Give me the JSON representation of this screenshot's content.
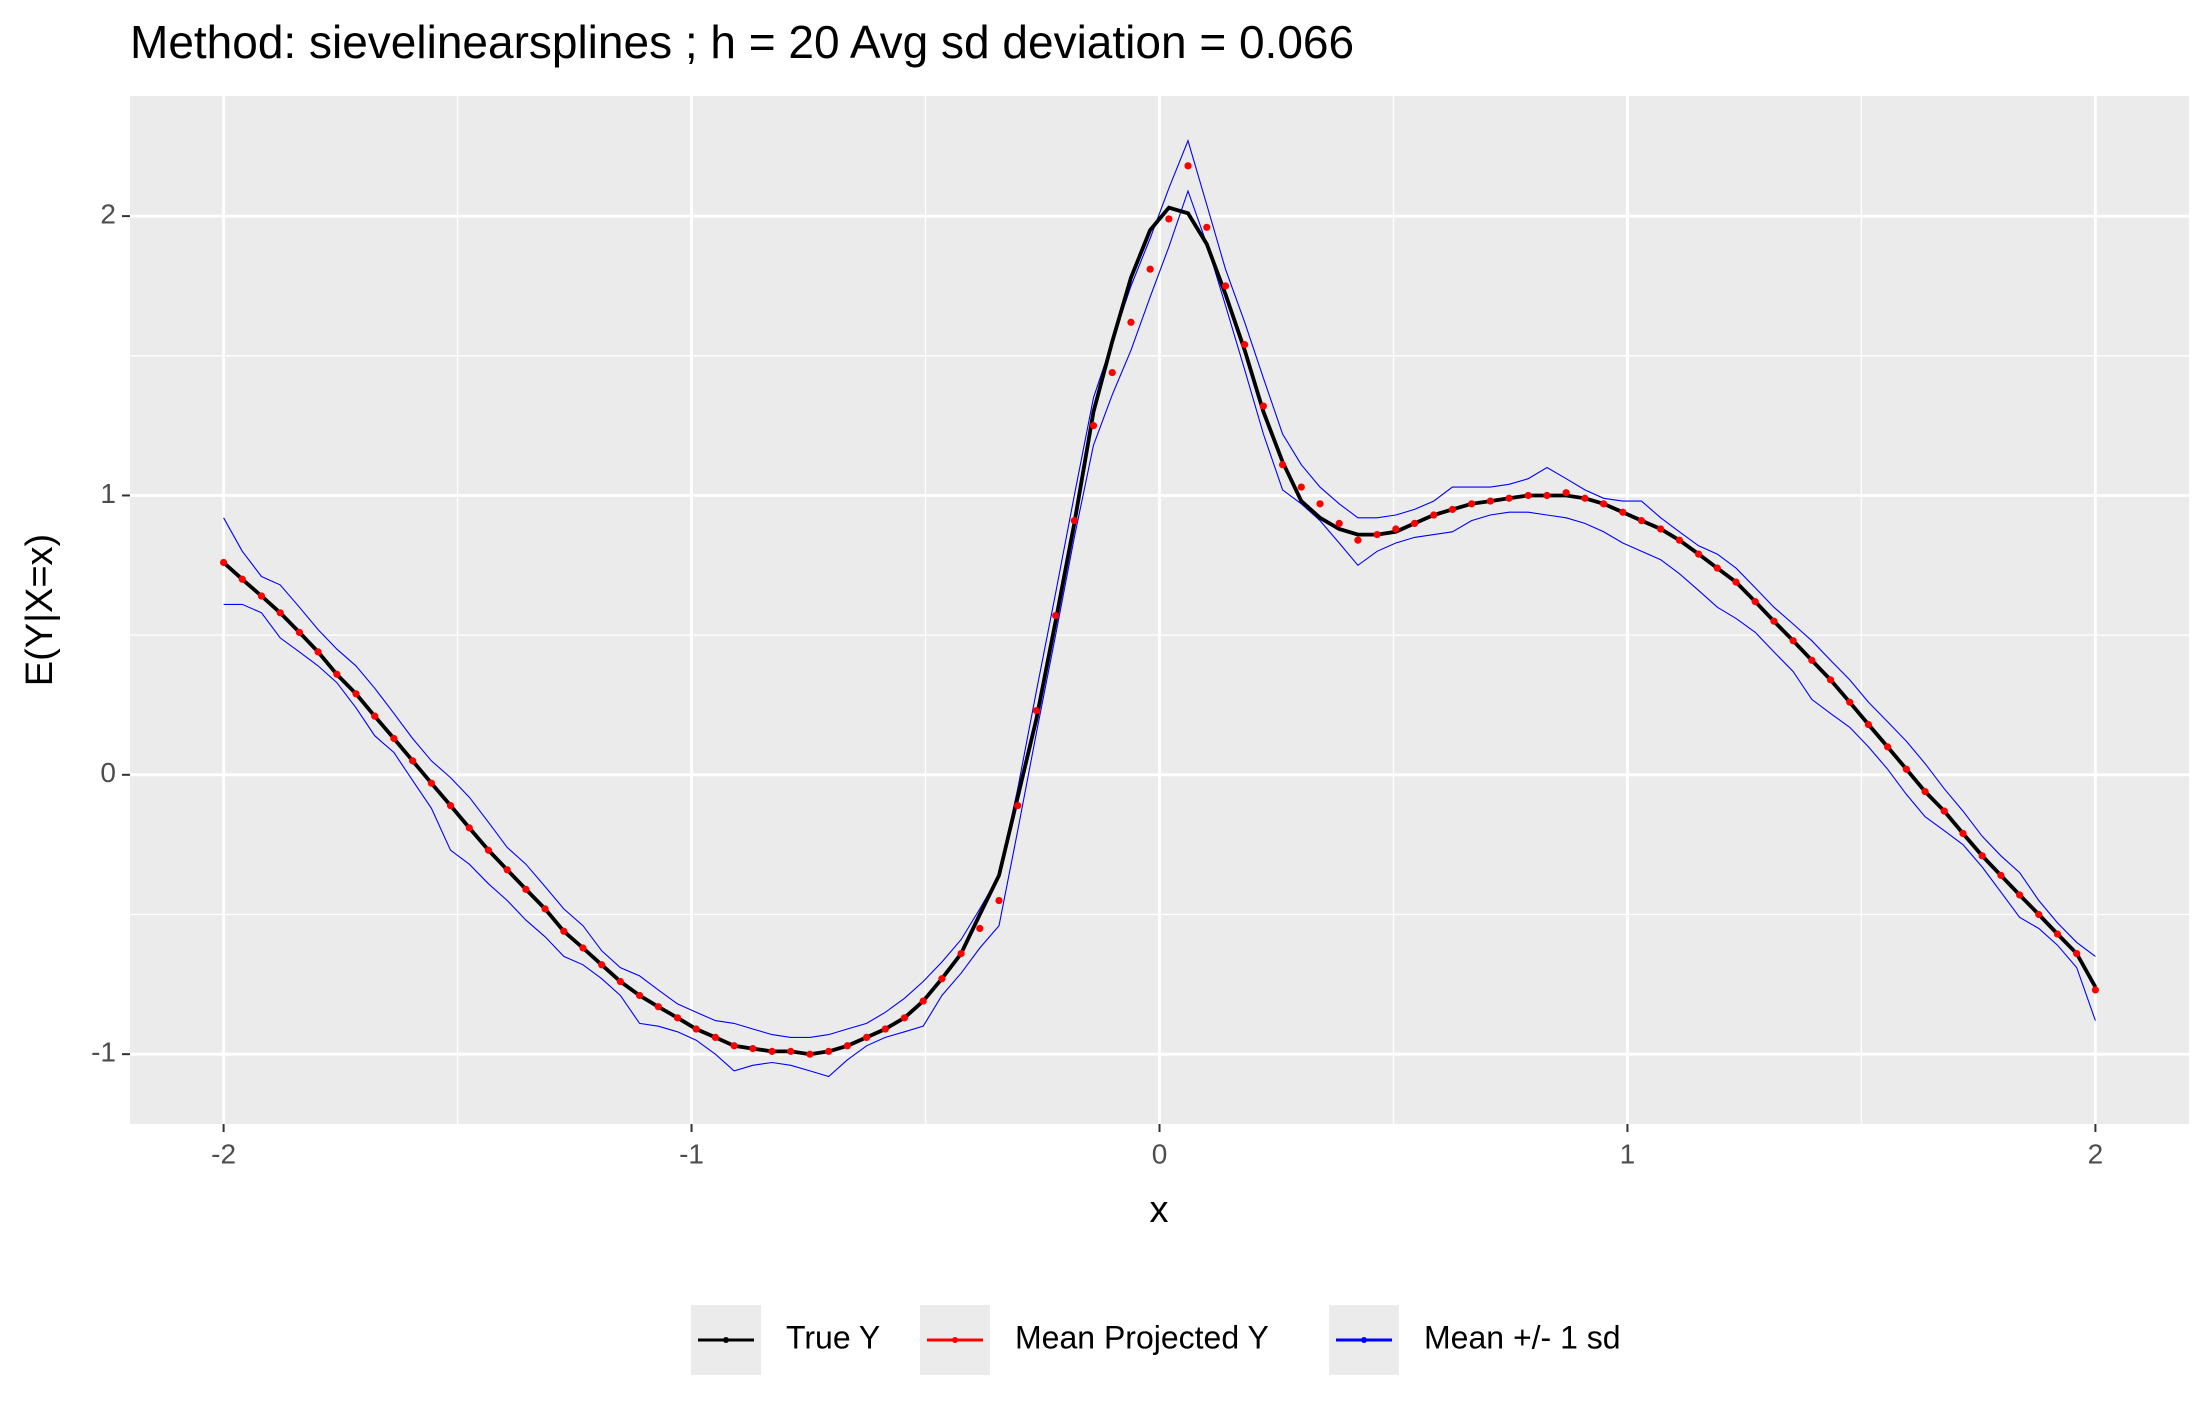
{
  "chart_data": {
    "type": "line",
    "title": "Method: sievelinearsplines ; h = 20 Avg sd deviation = 0.066",
    "x_label": "x",
    "y_label": "E(Y|X=x)",
    "x": [
      -2,
      -1.96,
      -1.919,
      -1.879,
      -1.838,
      -1.798,
      -1.758,
      -1.717,
      -1.677,
      -1.636,
      -1.596,
      -1.556,
      -1.515,
      -1.475,
      -1.434,
      -1.394,
      -1.354,
      -1.313,
      -1.273,
      -1.232,
      -1.192,
      -1.152,
      -1.111,
      -1.071,
      -1.03,
      -0.99,
      -0.949,
      -0.909,
      -0.869,
      -0.828,
      -0.788,
      -0.747,
      -0.707,
      -0.667,
      -0.626,
      -0.586,
      -0.545,
      -0.505,
      -0.465,
      -0.424,
      -0.384,
      -0.343,
      -0.303,
      -0.263,
      -0.222,
      -0.182,
      -0.141,
      -0.101,
      -0.061,
      -0.02,
      0.02,
      0.061,
      0.101,
      0.141,
      0.182,
      0.222,
      0.263,
      0.303,
      0.343,
      0.384,
      0.424,
      0.465,
      0.505,
      0.545,
      0.586,
      0.626,
      0.667,
      0.707,
      0.747,
      0.788,
      0.828,
      0.869,
      0.909,
      0.949,
      0.99,
      1.03,
      1.071,
      1.111,
      1.152,
      1.192,
      1.232,
      1.273,
      1.313,
      1.354,
      1.394,
      1.434,
      1.475,
      1.515,
      1.556,
      1.596,
      1.636,
      1.677,
      1.717,
      1.758,
      1.798,
      1.838,
      1.879,
      1.919,
      1.96,
      2
    ],
    "series": [
      {
        "name": "True Y",
        "color": "#000000",
        "values": [
          0.76,
          0.7,
          0.64,
          0.58,
          0.51,
          0.44,
          0.36,
          0.29,
          0.21,
          0.13,
          0.05,
          -0.03,
          -0.11,
          -0.19,
          -0.27,
          -0.34,
          -0.41,
          -0.48,
          -0.56,
          -0.62,
          -0.68,
          -0.74,
          -0.79,
          -0.83,
          -0.87,
          -0.91,
          -0.94,
          -0.97,
          -0.98,
          -0.99,
          -0.99,
          -1.0,
          -0.99,
          -0.97,
          -0.94,
          -0.91,
          -0.87,
          -0.81,
          -0.73,
          -0.64,
          -0.5,
          -0.36,
          -0.08,
          0.2,
          0.55,
          0.9,
          1.3,
          1.55,
          1.78,
          1.95,
          2.03,
          2.01,
          1.9,
          1.72,
          1.52,
          1.3,
          1.12,
          0.98,
          0.92,
          0.88,
          0.86,
          0.86,
          0.87,
          0.9,
          0.93,
          0.95,
          0.97,
          0.98,
          0.99,
          1.0,
          1.0,
          1.0,
          0.99,
          0.97,
          0.94,
          0.91,
          0.88,
          0.84,
          0.79,
          0.74,
          0.69,
          0.62,
          0.55,
          0.48,
          0.41,
          0.34,
          0.26,
          0.18,
          0.1,
          0.02,
          -0.06,
          -0.13,
          -0.21,
          -0.29,
          -0.36,
          -0.43,
          -0.5,
          -0.57,
          -0.64,
          -0.76
        ]
      },
      {
        "name": "Mean Projected Y",
        "color": "#ff0000",
        "values": [
          0.76,
          0.7,
          0.64,
          0.58,
          0.51,
          0.44,
          0.36,
          0.29,
          0.21,
          0.13,
          0.05,
          -0.03,
          -0.11,
          -0.19,
          -0.27,
          -0.34,
          -0.41,
          -0.48,
          -0.56,
          -0.62,
          -0.68,
          -0.74,
          -0.79,
          -0.83,
          -0.87,
          -0.91,
          -0.94,
          -0.97,
          -0.98,
          -0.99,
          -0.99,
          -1.0,
          -0.99,
          -0.97,
          -0.94,
          -0.91,
          -0.87,
          -0.81,
          -0.73,
          -0.64,
          -0.55,
          -0.45,
          -0.11,
          0.23,
          0.57,
          0.91,
          1.25,
          1.44,
          1.62,
          1.81,
          1.99,
          2.18,
          1.96,
          1.75,
          1.54,
          1.32,
          1.11,
          1.03,
          0.97,
          0.9,
          0.84,
          0.86,
          0.88,
          0.9,
          0.93,
          0.95,
          0.97,
          0.98,
          0.99,
          1.0,
          1.0,
          1.01,
          0.99,
          0.97,
          0.94,
          0.91,
          0.88,
          0.84,
          0.79,
          0.74,
          0.69,
          0.62,
          0.55,
          0.48,
          0.41,
          0.34,
          0.26,
          0.18,
          0.1,
          0.02,
          -0.06,
          -0.13,
          -0.21,
          -0.29,
          -0.36,
          -0.43,
          -0.5,
          -0.57,
          -0.64,
          -0.77
        ]
      },
      {
        "name": "Mean +/- 1 sd",
        "color": "#0000ff",
        "upper": [
          0.92,
          0.8,
          0.71,
          0.68,
          0.6,
          0.52,
          0.45,
          0.39,
          0.31,
          0.22,
          0.13,
          0.05,
          -0.01,
          -0.08,
          -0.17,
          -0.26,
          -0.32,
          -0.4,
          -0.48,
          -0.54,
          -0.63,
          -0.69,
          -0.72,
          -0.77,
          -0.82,
          -0.85,
          -0.88,
          -0.89,
          -0.91,
          -0.93,
          -0.94,
          -0.94,
          -0.93,
          -0.91,
          -0.89,
          -0.85,
          -0.8,
          -0.74,
          -0.67,
          -0.59,
          -0.48,
          -0.36,
          -0.05,
          0.3,
          0.65,
          1.0,
          1.35,
          1.55,
          1.75,
          1.92,
          2.1,
          2.27,
          2.04,
          1.81,
          1.62,
          1.42,
          1.22,
          1.11,
          1.03,
          0.97,
          0.92,
          0.92,
          0.93,
          0.95,
          0.98,
          1.03,
          1.03,
          1.03,
          1.04,
          1.06,
          1.1,
          1.06,
          1.02,
          0.99,
          0.98,
          0.98,
          0.92,
          0.87,
          0.82,
          0.79,
          0.74,
          0.67,
          0.6,
          0.54,
          0.48,
          0.41,
          0.34,
          0.26,
          0.19,
          0.12,
          0.04,
          -0.05,
          -0.13,
          -0.22,
          -0.29,
          -0.35,
          -0.45,
          -0.53,
          -0.6,
          -0.65
        ],
        "lower": [
          0.61,
          0.61,
          0.58,
          0.49,
          0.44,
          0.39,
          0.33,
          0.24,
          0.14,
          0.08,
          -0.02,
          -0.12,
          -0.27,
          -0.32,
          -0.39,
          -0.45,
          -0.52,
          -0.58,
          -0.65,
          -0.68,
          -0.73,
          -0.79,
          -0.89,
          -0.9,
          -0.92,
          -0.95,
          -1.0,
          -1.06,
          -1.04,
          -1.03,
          -1.04,
          -1.06,
          -1.08,
          -1.02,
          -0.97,
          -0.94,
          -0.92,
          -0.9,
          -0.79,
          -0.71,
          -0.62,
          -0.54,
          -0.2,
          0.15,
          0.5,
          0.85,
          1.18,
          1.36,
          1.52,
          1.71,
          1.89,
          2.09,
          1.9,
          1.68,
          1.45,
          1.22,
          1.02,
          0.97,
          0.91,
          0.83,
          0.75,
          0.8,
          0.83,
          0.85,
          0.86,
          0.87,
          0.91,
          0.93,
          0.94,
          0.94,
          0.93,
          0.92,
          0.9,
          0.87,
          0.83,
          0.8,
          0.77,
          0.72,
          0.66,
          0.6,
          0.56,
          0.51,
          0.44,
          0.37,
          0.27,
          0.22,
          0.17,
          0.1,
          0.02,
          -0.07,
          -0.15,
          -0.2,
          -0.25,
          -0.33,
          -0.42,
          -0.51,
          -0.55,
          -0.61,
          -0.69,
          -0.88
        ]
      }
    ],
    "xlim": [
      -2.2,
      2.2
    ],
    "ylim": [
      -1.25,
      2.43
    ],
    "xticks": [
      -2,
      -1,
      0,
      1,
      2
    ],
    "yticks": [
      -1,
      0,
      1,
      2
    ],
    "grid": true,
    "legend": "bottom"
  }
}
